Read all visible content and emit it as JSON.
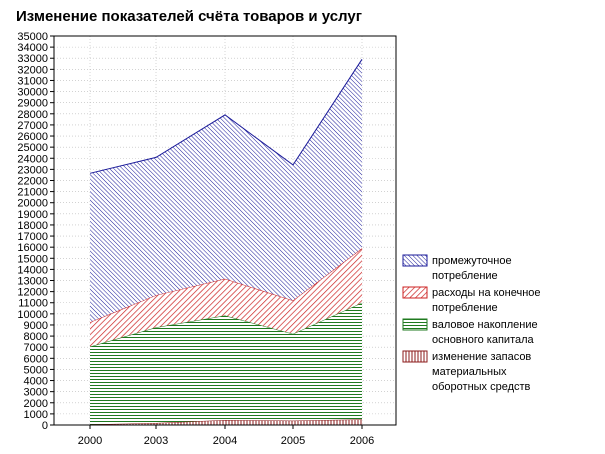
{
  "chart_data": {
    "type": "area",
    "stacked": true,
    "title": "Изменение показателей счёта товаров и услуг",
    "xlabel": "",
    "ylabel": "",
    "categories": [
      "2000",
      "2003",
      "2004",
      "2005",
      "2006"
    ],
    "ylim": [
      0,
      35000
    ],
    "ytick_step": 1000,
    "grid": true,
    "legend_position": "right",
    "series": [
      {
        "name_lines": [
          "изменение запасов",
          "материальных",
          "оборотных средств"
        ],
        "values": [
          50,
          180,
          450,
          400,
          500
        ],
        "color": "#8b1a1a",
        "pattern": "vertical"
      },
      {
        "name_lines": [
          "валовое накопление",
          "основного капитала"
        ],
        "values": [
          7000,
          8600,
          9400,
          7800,
          10500
        ],
        "color": "#1f7a1f",
        "pattern": "horizontal"
      },
      {
        "name_lines": [
          "расходы на конечное",
          "потребление"
        ],
        "values": [
          2200,
          2900,
          3300,
          3000,
          4900
        ],
        "color": "#cc2222",
        "pattern": "diagonal"
      },
      {
        "name_lines": [
          "промежуточное",
          "потребление"
        ],
        "values": [
          13400,
          12400,
          14750,
          12200,
          17000
        ],
        "color": "#1a1a99",
        "pattern": "diagonal"
      }
    ]
  }
}
